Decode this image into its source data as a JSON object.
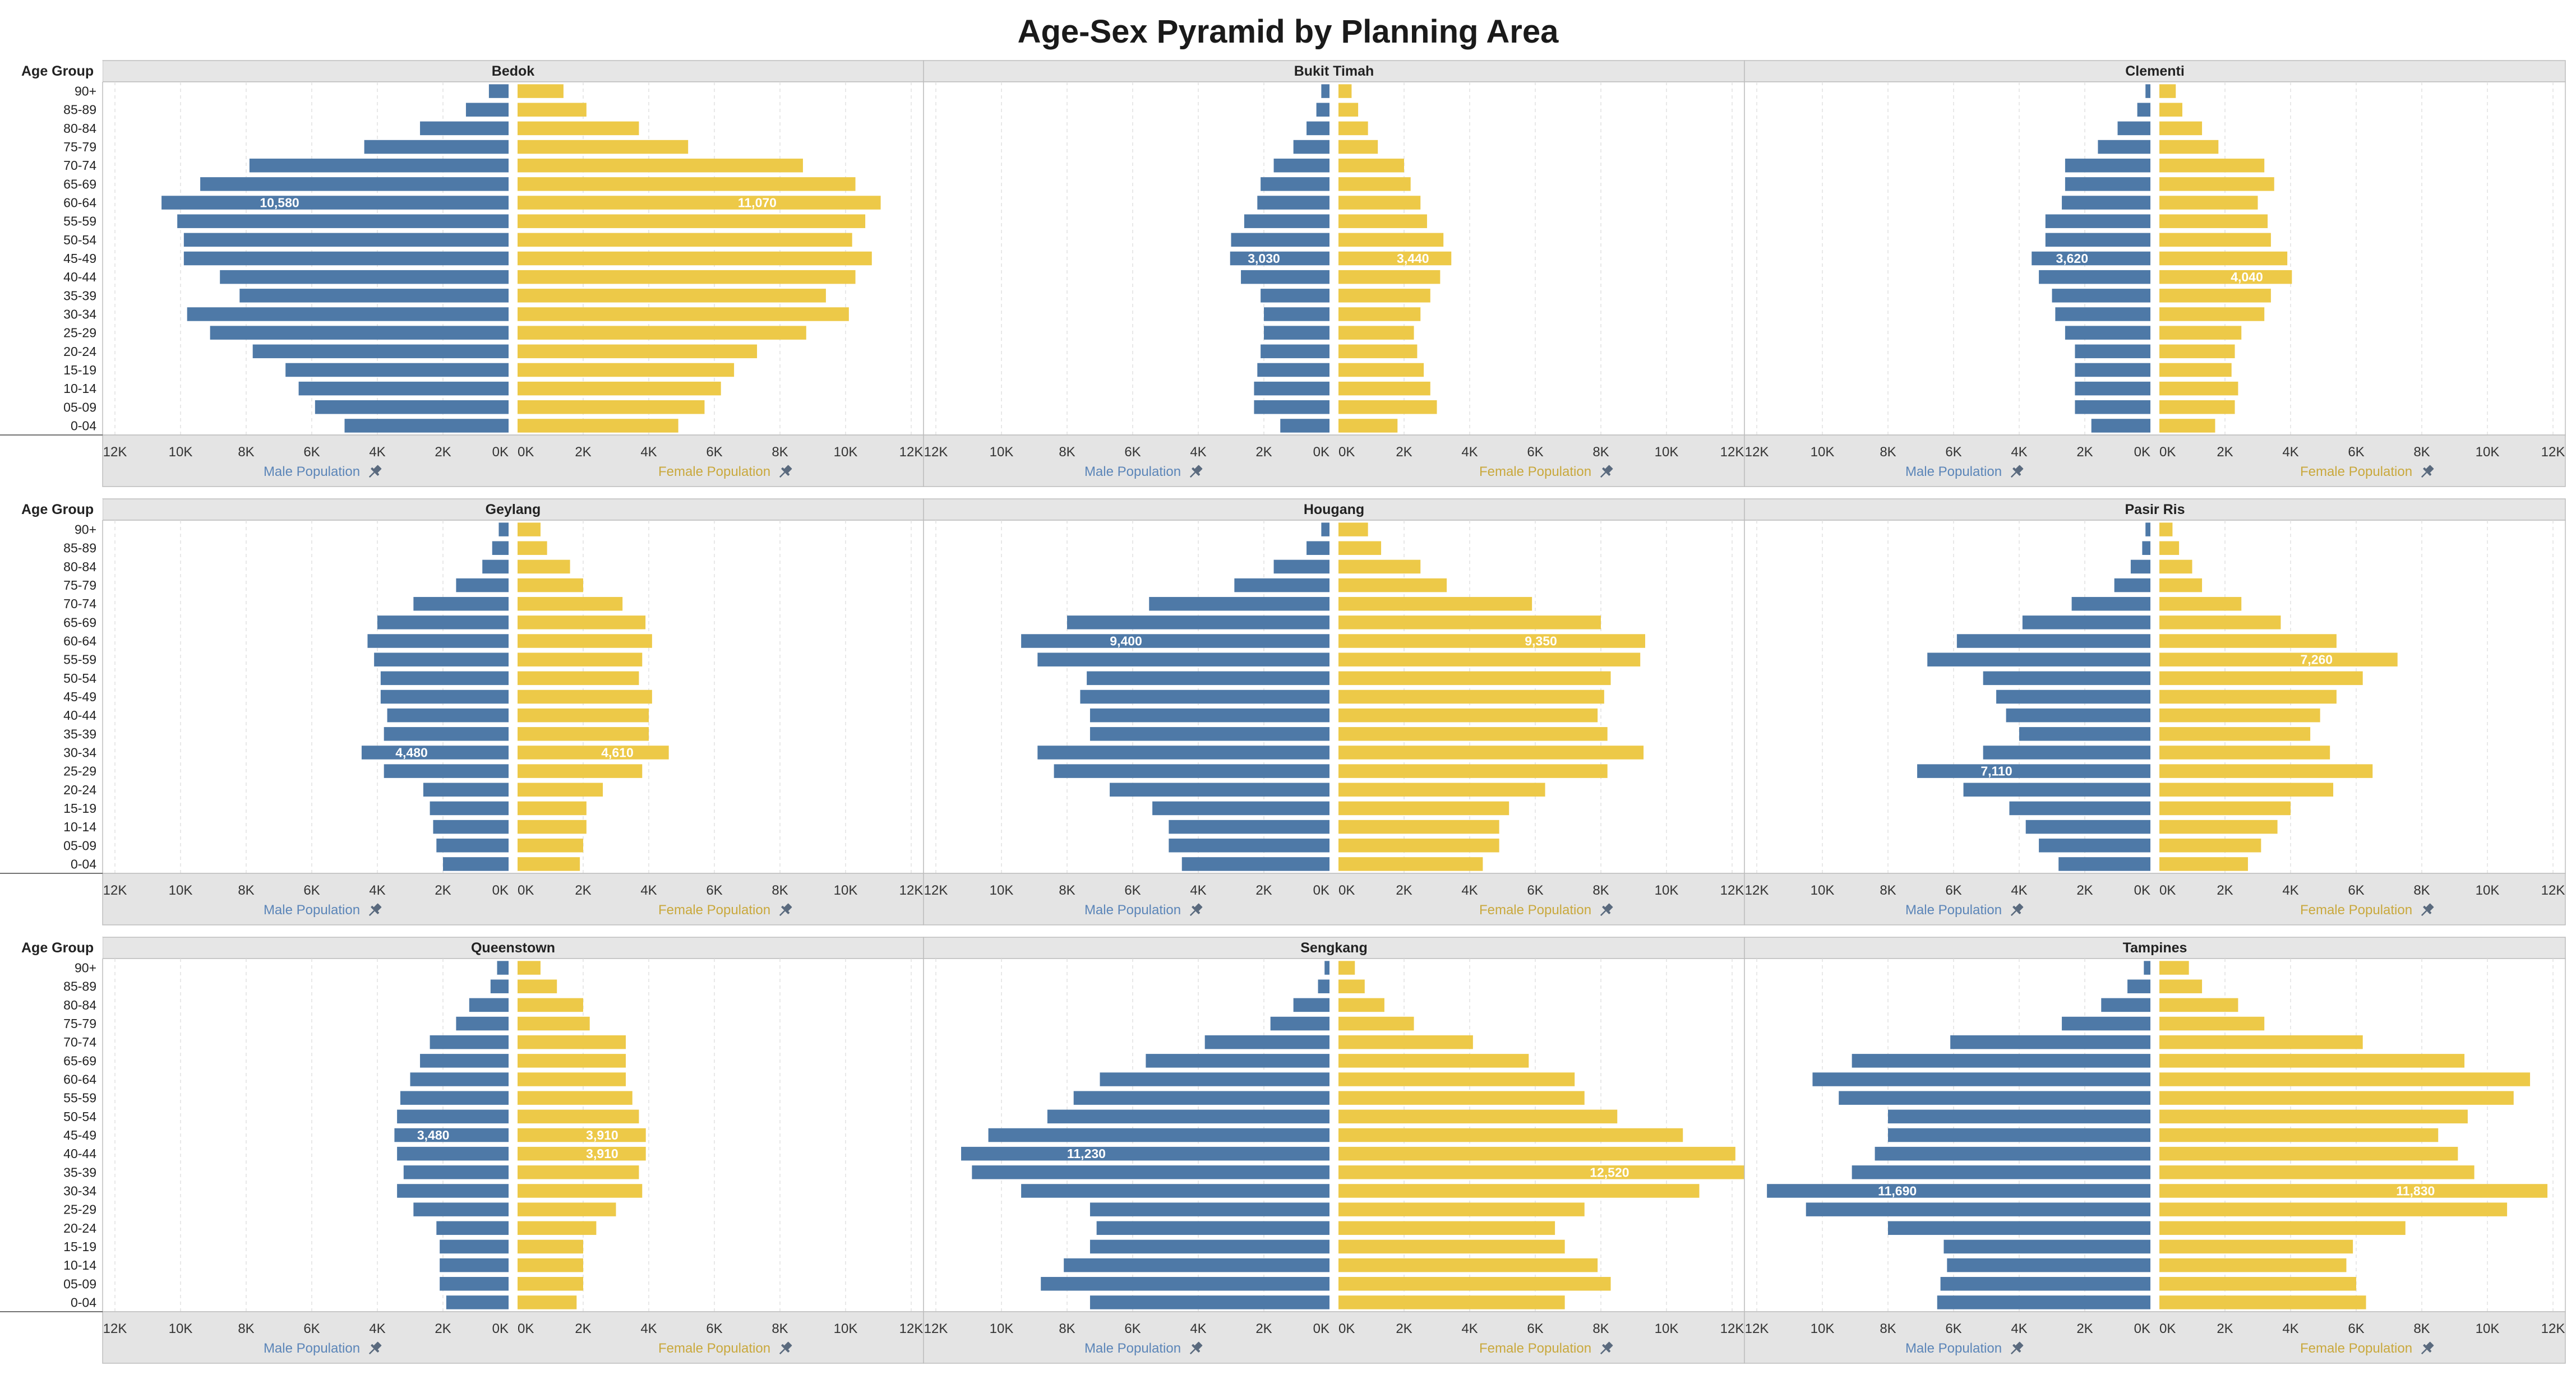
{
  "title": "Age-Sex Pyramid by Planning Area",
  "row_header_label": "Age Group",
  "colors": {
    "male": "#4e79a7",
    "female": "#edc948",
    "male_legend": "#5b85b8",
    "female_legend": "#c9a83c",
    "pin": "#5a6a7e",
    "panel_header_bg": "#e6e6e6",
    "panel_border": "#bdbdbd",
    "grid": "#e0e0e0"
  },
  "axis": {
    "male_label": "Male Population",
    "female_label": "Female Population",
    "male_ticks": [
      "12K",
      "10K",
      "8K",
      "6K",
      "4K",
      "2K",
      "0K"
    ],
    "female_ticks": [
      "0K",
      "2K",
      "4K",
      "6K",
      "8K",
      "10K",
      "12K"
    ],
    "pin_icon": "pin-icon"
  },
  "chart_data": {
    "type": "bar",
    "subtype": "population-pyramid",
    "title": "Age-Sex Pyramid by Planning Area",
    "xlim": [
      0,
      12000
    ],
    "grid": true,
    "categories": [
      "90+",
      "85-89",
      "80-84",
      "75-79",
      "70-74",
      "65-69",
      "60-64",
      "55-59",
      "50-54",
      "45-49",
      "40-44",
      "35-39",
      "30-34",
      "25-29",
      "20-24",
      "15-19",
      "10-14",
      "05-09",
      "0-04"
    ],
    "panels": [
      {
        "name": "Bedok",
        "male": [
          600,
          1300,
          2700,
          4400,
          7900,
          9400,
          10580,
          10100,
          9900,
          9900,
          8800,
          8200,
          9800,
          9100,
          7800,
          6800,
          6400,
          5900,
          5000
        ],
        "female": [
          1400,
          2100,
          3700,
          5200,
          8700,
          10300,
          11070,
          10600,
          10200,
          10800,
          10300,
          9400,
          10100,
          8800,
          7300,
          6600,
          6200,
          5700,
          4900
        ],
        "labels": [
          {
            "age": "60-64",
            "male": "10,580",
            "female": "11,070"
          }
        ]
      },
      {
        "name": "Bukit Timah",
        "male": [
          250,
          400,
          700,
          1100,
          1700,
          2100,
          2200,
          2600,
          3000,
          3030,
          2700,
          2100,
          2000,
          2000,
          2100,
          2200,
          2300,
          2300,
          1500
        ],
        "female": [
          400,
          600,
          900,
          1200,
          2000,
          2200,
          2500,
          2700,
          3200,
          3440,
          3100,
          2800,
          2500,
          2300,
          2400,
          2600,
          2800,
          3000,
          1800
        ],
        "labels": [
          {
            "age": "45-49",
            "male": "3,030",
            "female": "3,440"
          }
        ]
      },
      {
        "name": "Clementi",
        "male": [
          150,
          400,
          1000,
          1600,
          2600,
          2600,
          2700,
          3200,
          3200,
          3620,
          3400,
          3000,
          2900,
          2600,
          2300,
          2300,
          2300,
          2300,
          1800
        ],
        "female": [
          500,
          700,
          1300,
          1800,
          3200,
          3500,
          3000,
          3300,
          3400,
          3900,
          4040,
          3400,
          3200,
          2500,
          2300,
          2200,
          2400,
          2300,
          1700
        ],
        "labels": [
          {
            "age": "45-49",
            "male": "3,620"
          },
          {
            "age": "40-44",
            "female": "4,040"
          }
        ]
      },
      {
        "name": "Geylang",
        "male": [
          300,
          500,
          800,
          1600,
          2900,
          4000,
          4300,
          4100,
          3900,
          3900,
          3700,
          3800,
          4480,
          3800,
          2600,
          2400,
          2300,
          2200,
          2000
        ],
        "female": [
          700,
          900,
          1600,
          2000,
          3200,
          3900,
          4100,
          3800,
          3700,
          4100,
          4000,
          4000,
          4610,
          3800,
          2600,
          2100,
          2100,
          2000,
          1900
        ],
        "labels": [
          {
            "age": "30-34",
            "male": "4,480",
            "female": "4,610"
          }
        ]
      },
      {
        "name": "Hougang",
        "male": [
          250,
          700,
          1700,
          2900,
          5500,
          8000,
          9400,
          8900,
          7400,
          7600,
          7300,
          7300,
          8900,
          8400,
          6700,
          5400,
          4900,
          4900,
          4500
        ],
        "female": [
          900,
          1300,
          2500,
          3300,
          5900,
          8000,
          9350,
          9200,
          8300,
          8100,
          7900,
          8200,
          9300,
          8200,
          6300,
          5200,
          4900,
          4900,
          4400
        ],
        "labels": [
          {
            "age": "60-64",
            "male": "9,400",
            "female": "9,350"
          }
        ]
      },
      {
        "name": "Pasir Ris",
        "male": [
          150,
          250,
          600,
          1100,
          2400,
          3900,
          5900,
          6800,
          5100,
          4700,
          4400,
          4000,
          5100,
          7110,
          5700,
          4300,
          3800,
          3400,
          2800
        ],
        "female": [
          400,
          600,
          1000,
          1300,
          2500,
          3700,
          5400,
          7260,
          6200,
          5400,
          4900,
          4600,
          5200,
          6500,
          5300,
          4000,
          3600,
          3100,
          2700
        ],
        "labels": [
          {
            "age": "55-59",
            "female": "7,260"
          },
          {
            "age": "25-29",
            "male": "7,110"
          }
        ]
      },
      {
        "name": "Queenstown",
        "male": [
          350,
          550,
          1200,
          1600,
          2400,
          2700,
          3000,
          3300,
          3400,
          3480,
          3400,
          3200,
          3400,
          2900,
          2200,
          2100,
          2100,
          2100,
          1900
        ],
        "female": [
          700,
          1200,
          2000,
          2200,
          3300,
          3300,
          3300,
          3500,
          3700,
          3910,
          3910,
          3700,
          3800,
          3000,
          2400,
          2000,
          2000,
          2000,
          1800
        ],
        "labels": [
          {
            "age": "45-49",
            "male": "3,480",
            "female": "3,910"
          },
          {
            "age": "40-44",
            "female": "3,910"
          }
        ]
      },
      {
        "name": "Sengkang",
        "male": [
          150,
          350,
          1100,
          1800,
          3800,
          5600,
          7000,
          7800,
          8600,
          10400,
          11230,
          10900,
          9400,
          7300,
          7100,
          7300,
          8100,
          8800,
          7300
        ],
        "female": [
          500,
          800,
          1400,
          2300,
          4100,
          5800,
          7200,
          7500,
          8500,
          10500,
          12100,
          12520,
          11000,
          7500,
          6600,
          6900,
          7900,
          8300,
          6900
        ],
        "labels": [
          {
            "age": "40-44",
            "male": "11,230"
          },
          {
            "age": "35-39",
            "female": "12,520"
          }
        ]
      },
      {
        "name": "Tampines",
        "male": [
          200,
          700,
          1500,
          2700,
          6100,
          9100,
          10300,
          9500,
          8000,
          8000,
          8400,
          9100,
          11690,
          10500,
          8000,
          6300,
          6200,
          6400,
          6500
        ],
        "female": [
          900,
          1300,
          2400,
          3200,
          6200,
          9300,
          11300,
          10800,
          9400,
          8500,
          9100,
          9600,
          11830,
          10600,
          7500,
          5900,
          5700,
          6000,
          6300
        ],
        "labels": [
          {
            "age": "30-34",
            "male": "11,690",
            "female": "11,830"
          }
        ]
      }
    ]
  }
}
